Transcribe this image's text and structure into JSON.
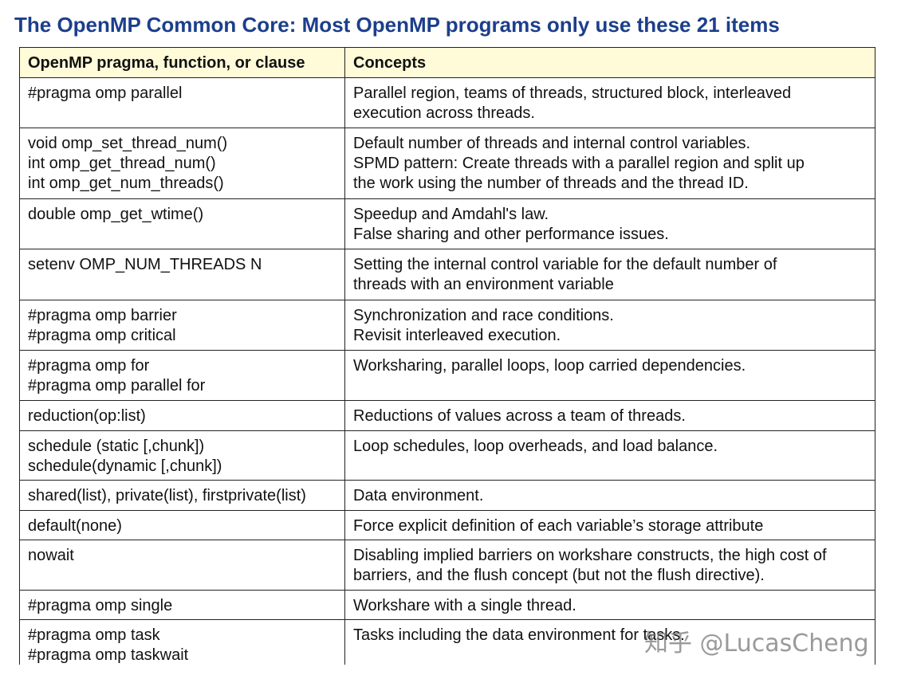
{
  "header": {
    "title": "The OpenMP Common Core: Most OpenMP programs only use these 21 items"
  },
  "table": {
    "columns": [
      "OpenMP pragma, function, or clause",
      "Concepts"
    ],
    "rows": [
      [
        [
          "#pragma omp parallel"
        ],
        [
          "Parallel region, teams of threads,  structured block, interleaved",
          "execution across threads."
        ]
      ],
      [
        [
          "void omp_set_thread_num()",
          "int omp_get_thread_num()",
          "int omp_get_num_threads()"
        ],
        [
          "Default number of threads and internal control variables.",
          "SPMD pattern: Create threads with a parallel region and split up",
          "the work using the number of threads and the thread ID."
        ]
      ],
      [
        [
          "double omp_get_wtime()"
        ],
        [
          "Speedup and Amdahl's law.",
          "False sharing and other performance issues."
        ]
      ],
      [
        [
          "setenv OMP_NUM_THREADS  N"
        ],
        [
          "Setting the internal control variable for the default number of",
          "threads with an environment variable"
        ]
      ],
      [
        [
          "#pragma omp barrier",
          "#pragma omp critical"
        ],
        [
          "Synchronization and race conditions.",
          "Revisit interleaved execution."
        ]
      ],
      [
        [
          "#pragma omp for",
          "#pragma omp parallel for"
        ],
        [
          "Worksharing, parallel loops, loop carried dependencies."
        ]
      ],
      [
        [
          "reduction(op:list)"
        ],
        [
          "Reductions of values across a team of threads."
        ]
      ],
      [
        [
          "schedule (static [,chunk])",
          "schedule(dynamic [,chunk])"
        ],
        [
          "Loop schedules, loop overheads, and load balance."
        ]
      ],
      [
        [
          "shared(list), private(list), firstprivate(list)"
        ],
        [
          "Data environment."
        ]
      ],
      [
        [
          "default(none)"
        ],
        [
          "Force explicit definition of each variable’s storage attribute"
        ]
      ],
      [
        [
          "nowait"
        ],
        [
          "Disabling implied barriers on workshare constructs, the high cost of",
          "barriers, and the flush concept (but not the flush directive)."
        ]
      ],
      [
        [
          "#pragma omp single"
        ],
        [
          "Workshare with a single thread."
        ]
      ],
      [
        [
          "#pragma omp task",
          "#pragma omp taskwait"
        ],
        [
          "Tasks including the data environment for tasks."
        ]
      ]
    ]
  },
  "watermark": "知乎 @LucasCheng"
}
